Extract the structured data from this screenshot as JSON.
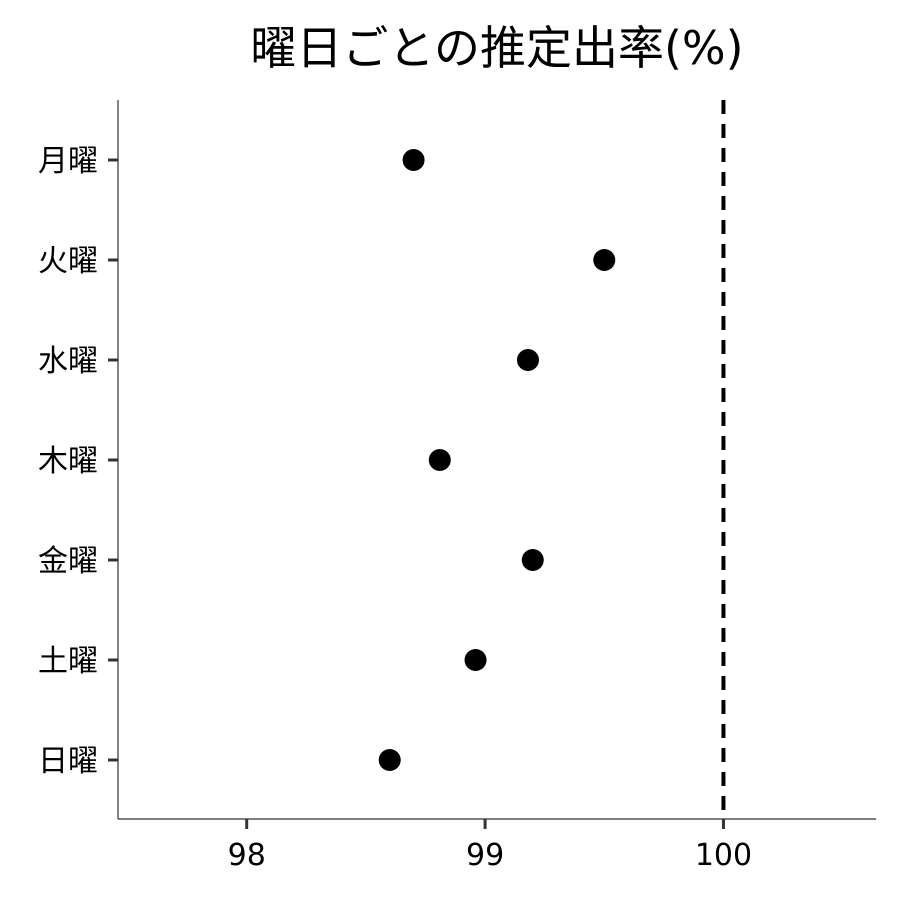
{
  "chart_data": {
    "type": "scatter",
    "title": "曜日ごとの推定出率(%)",
    "xlabel": "",
    "ylabel": "",
    "categories": [
      "月曜",
      "火曜",
      "水曜",
      "木曜",
      "金曜",
      "土曜",
      "日曜"
    ],
    "values": [
      98.7,
      99.5,
      99.18,
      98.81,
      99.2,
      98.96,
      98.6
    ],
    "x_ticks": [
      "98",
      "99",
      "100"
    ],
    "xlim": [
      97.46,
      100.64
    ],
    "reference_line": {
      "x": 100,
      "style": "dashed"
    },
    "grid": false,
    "legend": "none",
    "point_color": "#000000"
  }
}
